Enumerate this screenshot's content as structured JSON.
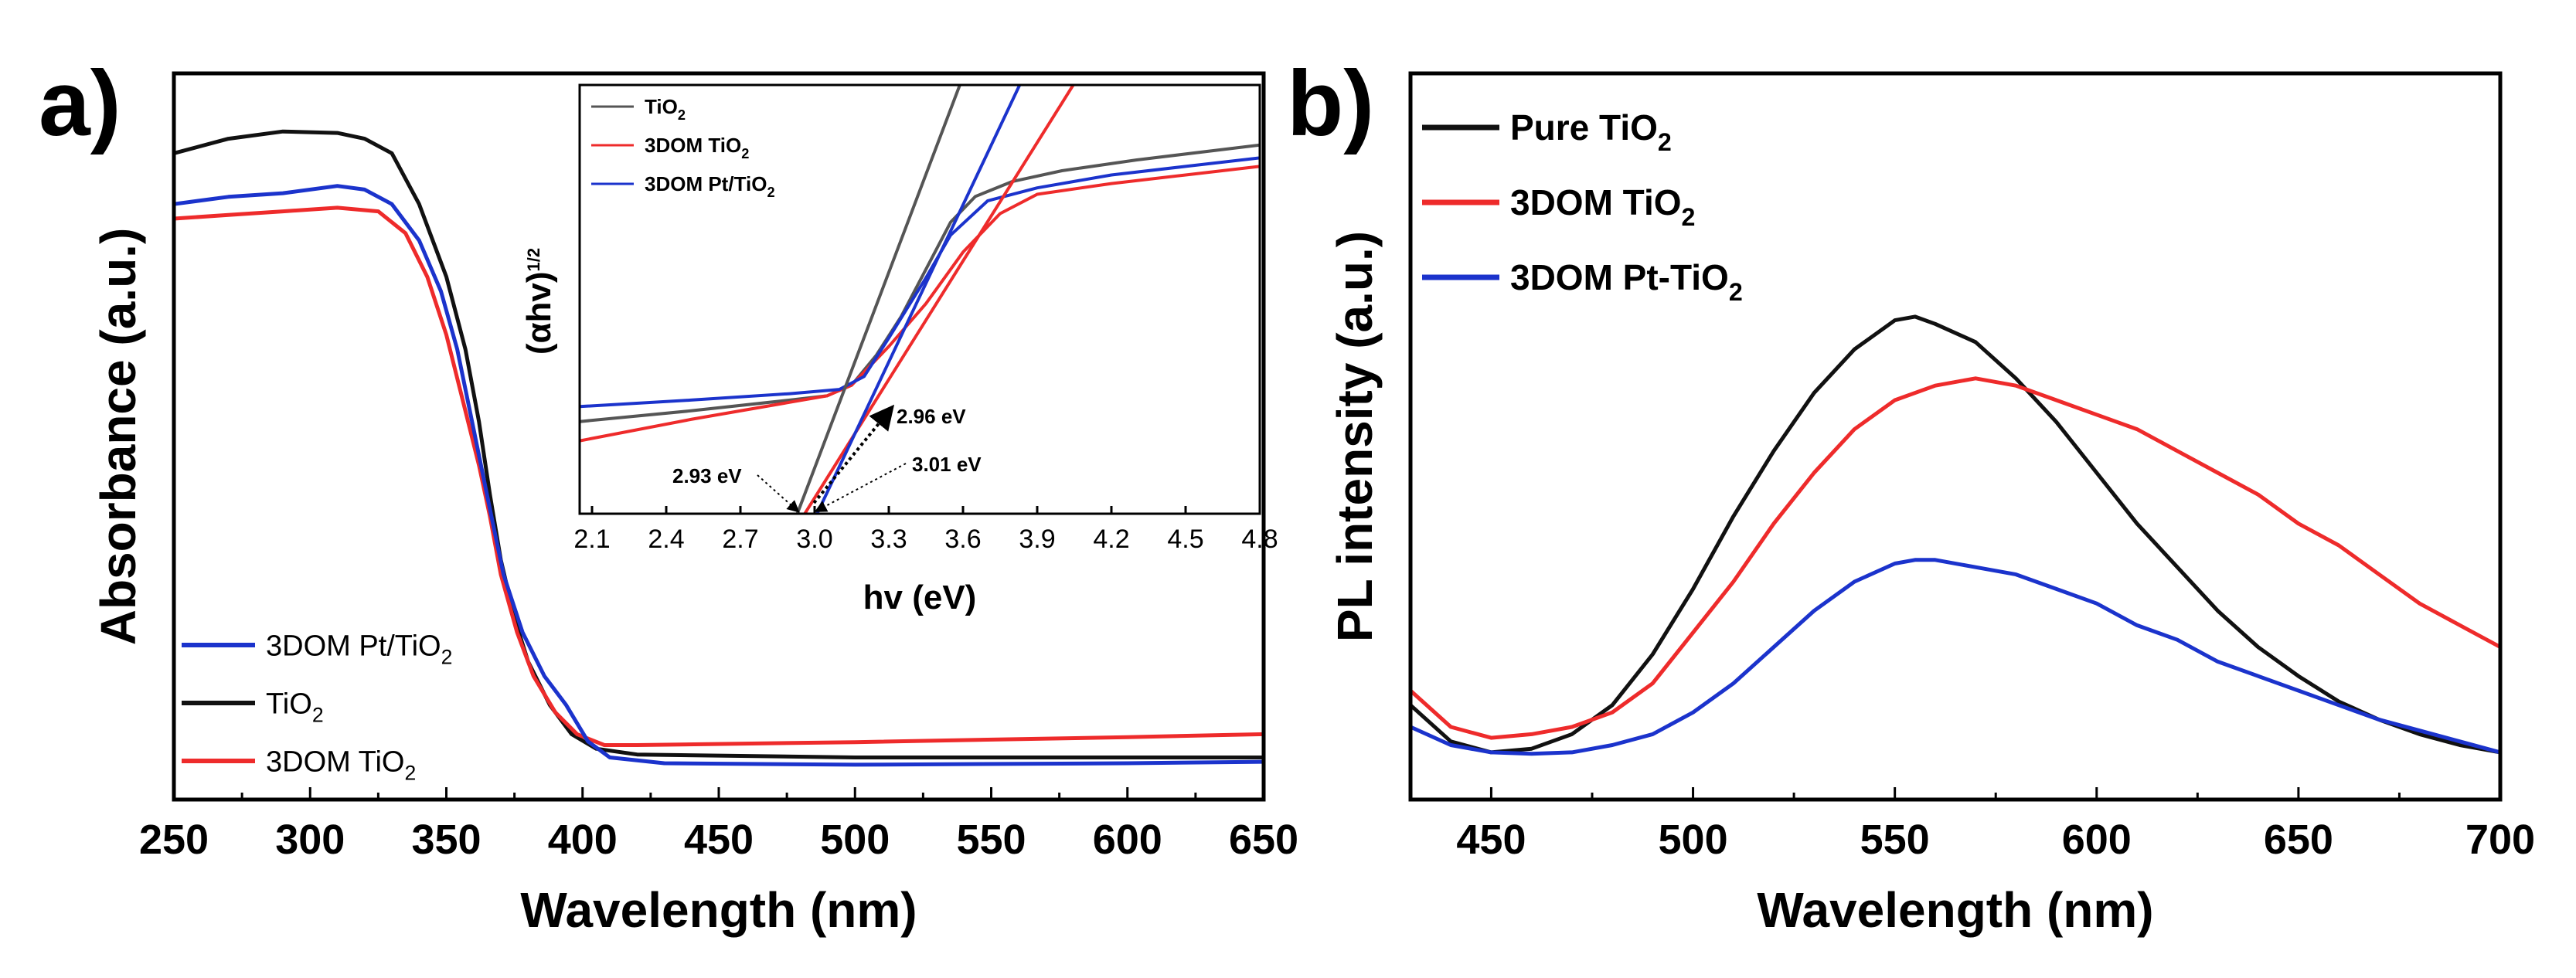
{
  "panel_labels": {
    "a": "a)",
    "b": "b)"
  },
  "colors": {
    "black": "#111111",
    "red": "#ee2b2b",
    "blue": "#1b33cc",
    "gray": "#555555"
  },
  "chart_data": [
    {
      "id": "uv-vis",
      "type": "line",
      "xlabel": "Wavelength (nm)",
      "ylabel": "Absorbance (a.u.)",
      "xlim": [
        250,
        650
      ],
      "ylim": [
        0,
        1
      ],
      "xticks": [
        "250",
        "300",
        "350",
        "400",
        "450",
        "500",
        "550",
        "600",
        "650"
      ],
      "legend": [
        {
          "name": "3DOM Pt/TiO",
          "sub": "2",
          "color": "#1b33cc"
        },
        {
          "name": "TiO",
          "sub": "2",
          "color": "#111111"
        },
        {
          "name": "3DOM TiO",
          "sub": "2",
          "color": "#ee2b2b"
        }
      ],
      "legend_position": "lower-left",
      "series": [
        {
          "name": "TiO2",
          "color": "#111111",
          "points": [
            [
              250,
              0.89
            ],
            [
              270,
              0.91
            ],
            [
              290,
              0.92
            ],
            [
              310,
              0.918
            ],
            [
              320,
              0.91
            ],
            [
              330,
              0.89
            ],
            [
              340,
              0.82
            ],
            [
              350,
              0.72
            ],
            [
              357,
              0.62
            ],
            [
              362,
              0.52
            ],
            [
              366,
              0.42
            ],
            [
              370,
              0.33
            ],
            [
              375,
              0.25
            ],
            [
              380,
              0.19
            ],
            [
              388,
              0.13
            ],
            [
              396,
              0.09
            ],
            [
              405,
              0.07
            ],
            [
              420,
              0.062
            ],
            [
              500,
              0.058
            ],
            [
              600,
              0.058
            ],
            [
              650,
              0.058
            ]
          ]
        },
        {
          "name": "3DOM TiO2",
          "color": "#ee2b2b",
          "points": [
            [
              250,
              0.8
            ],
            [
              270,
              0.805
            ],
            [
              290,
              0.81
            ],
            [
              310,
              0.815
            ],
            [
              325,
              0.81
            ],
            [
              335,
              0.78
            ],
            [
              343,
              0.72
            ],
            [
              350,
              0.64
            ],
            [
              356,
              0.55
            ],
            [
              362,
              0.46
            ],
            [
              366,
              0.39
            ],
            [
              370,
              0.31
            ],
            [
              376,
              0.23
            ],
            [
              382,
              0.17
            ],
            [
              390,
              0.12
            ],
            [
              398,
              0.09
            ],
            [
              408,
              0.075
            ],
            [
              420,
              0.075
            ],
            [
              500,
              0.079
            ],
            [
              600,
              0.086
            ],
            [
              650,
              0.09
            ]
          ]
        },
        {
          "name": "3DOM Pt/TiO2",
          "color": "#1b33cc",
          "points": [
            [
              250,
              0.82
            ],
            [
              270,
              0.83
            ],
            [
              290,
              0.835
            ],
            [
              310,
              0.845
            ],
            [
              320,
              0.84
            ],
            [
              330,
              0.82
            ],
            [
              340,
              0.77
            ],
            [
              348,
              0.7
            ],
            [
              354,
              0.62
            ],
            [
              360,
              0.51
            ],
            [
              366,
              0.4
            ],
            [
              371,
              0.31
            ],
            [
              378,
              0.23
            ],
            [
              386,
              0.17
            ],
            [
              394,
              0.13
            ],
            [
              402,
              0.08
            ],
            [
              410,
              0.058
            ],
            [
              430,
              0.05
            ],
            [
              500,
              0.048
            ],
            [
              600,
              0.05
            ],
            [
              650,
              0.052
            ]
          ]
        }
      ],
      "inset": {
        "xlabel": "hv (eV)",
        "ylabel": "(αhv)",
        "ylabel_sup": "1/2",
        "xlim": [
          2.05,
          4.8
        ],
        "ylim": [
          0,
          1
        ],
        "xticks": [
          "2.1",
          "2.4",
          "2.7",
          "3.0",
          "3.3",
          "3.6",
          "3.9",
          "4.2",
          "4.5",
          "4.8"
        ],
        "legend": [
          {
            "name": "TiO",
            "sub": "2",
            "color": "#555555"
          },
          {
            "name": "3DOM TiO",
            "sub": "2",
            "color": "#ee2b2b"
          },
          {
            "name": "3DOM Pt/TiO",
            "sub": "2",
            "color": "#1b33cc"
          }
        ],
        "series": [
          {
            "name": "TiO2",
            "color": "#555555",
            "points": [
              [
                2.05,
                0.215
              ],
              [
                2.5,
                0.24
              ],
              [
                2.9,
                0.265
              ],
              [
                3.05,
                0.275
              ],
              [
                3.15,
                0.3
              ],
              [
                3.25,
                0.37
              ],
              [
                3.35,
                0.46
              ],
              [
                3.45,
                0.57
              ],
              [
                3.55,
                0.68
              ],
              [
                3.65,
                0.74
              ],
              [
                3.8,
                0.775
              ],
              [
                4.0,
                0.8
              ],
              [
                4.3,
                0.825
              ],
              [
                4.8,
                0.86
              ]
            ]
          },
          {
            "name": "3DOM TiO2",
            "color": "#ee2b2b",
            "points": [
              [
                2.05,
                0.17
              ],
              [
                2.5,
                0.22
              ],
              [
                2.9,
                0.26
              ],
              [
                3.05,
                0.275
              ],
              [
                3.15,
                0.3
              ],
              [
                3.3,
                0.39
              ],
              [
                3.45,
                0.49
              ],
              [
                3.6,
                0.61
              ],
              [
                3.75,
                0.7
              ],
              [
                3.9,
                0.745
              ],
              [
                4.2,
                0.77
              ],
              [
                4.5,
                0.79
              ],
              [
                4.8,
                0.81
              ]
            ]
          },
          {
            "name": "3DOM Pt/TiO2",
            "color": "#1b33cc",
            "points": [
              [
                2.05,
                0.25
              ],
              [
                2.5,
                0.265
              ],
              [
                2.9,
                0.28
              ],
              [
                3.1,
                0.29
              ],
              [
                3.2,
                0.32
              ],
              [
                3.3,
                0.41
              ],
              [
                3.45,
                0.55
              ],
              [
                3.55,
                0.65
              ],
              [
                3.7,
                0.73
              ],
              [
                3.9,
                0.76
              ],
              [
                4.2,
                0.79
              ],
              [
                4.5,
                0.81
              ],
              [
                4.8,
                0.83
              ]
            ]
          }
        ],
        "tangents": [
          {
            "color": "#555555",
            "points": [
              [
                2.93,
                0.0
              ],
              [
                3.62,
                1.05
              ]
            ]
          },
          {
            "color": "#ee2b2b",
            "points": [
              [
                2.96,
                0.0
              ],
              [
                4.1,
                1.05
              ]
            ]
          },
          {
            "color": "#1b33cc",
            "points": [
              [
                3.01,
                0.0
              ],
              [
                3.87,
                1.05
              ]
            ]
          }
        ],
        "annotations": [
          {
            "text": "2.93 eV",
            "target": [
              2.93,
              0.0
            ]
          },
          {
            "text": "2.96 eV",
            "target": [
              2.96,
              0.0
            ]
          },
          {
            "text": "3.01 eV",
            "target": [
              3.01,
              0.0
            ]
          }
        ]
      }
    },
    {
      "id": "pl",
      "type": "line",
      "xlabel": "Wavelength (nm)",
      "ylabel": "PL intensity (a.u.)",
      "xlim": [
        430,
        700
      ],
      "ylim": [
        0,
        1
      ],
      "xticks": [
        "450",
        "500",
        "550",
        "600",
        "650",
        "700"
      ],
      "legend": [
        {
          "name": "Pure TiO",
          "sub": "2",
          "color": "#111111"
        },
        {
          "name": "3DOM TiO",
          "sub": "2",
          "color": "#ee2b2b"
        },
        {
          "name": "3DOM Pt-TiO",
          "sub": "2",
          "color": "#1b33cc"
        }
      ],
      "legend_position": "top-left",
      "series": [
        {
          "name": "Pure TiO2",
          "color": "#111111",
          "points": [
            [
              430,
              0.13
            ],
            [
              440,
              0.08
            ],
            [
              450,
              0.065
            ],
            [
              460,
              0.07
            ],
            [
              470,
              0.09
            ],
            [
              480,
              0.13
            ],
            [
              490,
              0.2
            ],
            [
              500,
              0.29
            ],
            [
              510,
              0.39
            ],
            [
              520,
              0.48
            ],
            [
              530,
              0.56
            ],
            [
              540,
              0.62
            ],
            [
              550,
              0.66
            ],
            [
              555,
              0.665
            ],
            [
              560,
              0.655
            ],
            [
              570,
              0.63
            ],
            [
              580,
              0.58
            ],
            [
              590,
              0.52
            ],
            [
              600,
              0.45
            ],
            [
              610,
              0.38
            ],
            [
              620,
              0.32
            ],
            [
              630,
              0.26
            ],
            [
              640,
              0.21
            ],
            [
              650,
              0.17
            ],
            [
              660,
              0.135
            ],
            [
              670,
              0.11
            ],
            [
              680,
              0.09
            ],
            [
              690,
              0.075
            ],
            [
              700,
              0.065
            ]
          ]
        },
        {
          "name": "3DOM TiO2",
          "color": "#ee2b2b",
          "points": [
            [
              430,
              0.15
            ],
            [
              440,
              0.1
            ],
            [
              450,
              0.085
            ],
            [
              460,
              0.09
            ],
            [
              470,
              0.1
            ],
            [
              480,
              0.12
            ],
            [
              490,
              0.16
            ],
            [
              500,
              0.23
            ],
            [
              510,
              0.3
            ],
            [
              520,
              0.38
            ],
            [
              530,
              0.45
            ],
            [
              540,
              0.51
            ],
            [
              550,
              0.55
            ],
            [
              560,
              0.57
            ],
            [
              570,
              0.58
            ],
            [
              580,
              0.57
            ],
            [
              590,
              0.55
            ],
            [
              600,
              0.53
            ],
            [
              610,
              0.51
            ],
            [
              620,
              0.48
            ],
            [
              630,
              0.45
            ],
            [
              640,
              0.42
            ],
            [
              650,
              0.38
            ],
            [
              660,
              0.35
            ],
            [
              670,
              0.31
            ],
            [
              680,
              0.27
            ],
            [
              690,
              0.24
            ],
            [
              700,
              0.21
            ]
          ]
        },
        {
          "name": "3DOM Pt-TiO2",
          "color": "#1b33cc",
          "points": [
            [
              430,
              0.1
            ],
            [
              440,
              0.075
            ],
            [
              450,
              0.065
            ],
            [
              460,
              0.063
            ],
            [
              470,
              0.065
            ],
            [
              480,
              0.075
            ],
            [
              490,
              0.09
            ],
            [
              500,
              0.12
            ],
            [
              510,
              0.16
            ],
            [
              520,
              0.21
            ],
            [
              530,
              0.26
            ],
            [
              540,
              0.3
            ],
            [
              550,
              0.325
            ],
            [
              555,
              0.33
            ],
            [
              560,
              0.33
            ],
            [
              570,
              0.32
            ],
            [
              580,
              0.31
            ],
            [
              590,
              0.29
            ],
            [
              600,
              0.27
            ],
            [
              610,
              0.24
            ],
            [
              620,
              0.22
            ],
            [
              630,
              0.19
            ],
            [
              640,
              0.17
            ],
            [
              650,
              0.15
            ],
            [
              660,
              0.13
            ],
            [
              670,
              0.11
            ],
            [
              680,
              0.095
            ],
            [
              690,
              0.08
            ],
            [
              700,
              0.065
            ]
          ]
        }
      ]
    }
  ]
}
